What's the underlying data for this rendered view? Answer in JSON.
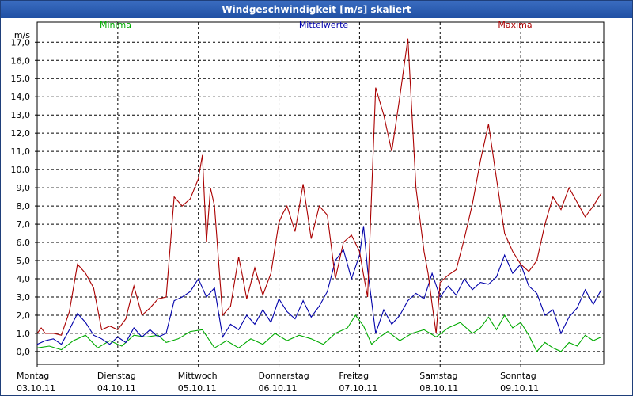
{
  "window": {
    "title": "Windgeschwindigkeit [m/s] skaliert"
  },
  "chart_data": {
    "type": "line",
    "title": "Windgeschwindigkeit [m/s] skaliert",
    "ylabel": "m/s",
    "ylim": [
      -0.7,
      18.1
    ],
    "yticks": [
      "0,0",
      "1,0",
      "2,0",
      "3,0",
      "4,0",
      "5,0",
      "6,0",
      "7,0",
      "8,0",
      "9,0",
      "10,0",
      "11,0",
      "12,0",
      "13,0",
      "14,0",
      "15,0",
      "16,0",
      "17,0"
    ],
    "xlim": [
      0,
      7.03
    ],
    "x_unit": "days",
    "days": [
      {
        "weekday": "Montag",
        "date": "03.10.11"
      },
      {
        "weekday": "Dienstag",
        "date": "04.10.11"
      },
      {
        "weekday": "Mittwoch",
        "date": "05.10.11"
      },
      {
        "weekday": "Donnerstag",
        "date": "06.10.11"
      },
      {
        "weekday": "Freitag",
        "date": "07.10.11"
      },
      {
        "weekday": "Samstag",
        "date": "08.10.11"
      },
      {
        "weekday": "Sonntag",
        "date": "09.10.11"
      }
    ],
    "grid": true,
    "legend_position": "top",
    "series": [
      {
        "name": "Minima",
        "color": "#00aa00",
        "points": [
          [
            0,
            0.2
          ],
          [
            0.15,
            0.3
          ],
          [
            0.3,
            0.1
          ],
          [
            0.45,
            0.6
          ],
          [
            0.6,
            0.9
          ],
          [
            0.75,
            0.2
          ],
          [
            0.9,
            0.6
          ],
          [
            1.05,
            0.3
          ],
          [
            1.2,
            0.9
          ],
          [
            1.35,
            0.8
          ],
          [
            1.5,
            0.9
          ],
          [
            1.6,
            0.5
          ],
          [
            1.75,
            0.7
          ],
          [
            1.9,
            1.1
          ],
          [
            2.05,
            1.2
          ],
          [
            2.2,
            0.2
          ],
          [
            2.35,
            0.6
          ],
          [
            2.5,
            0.2
          ],
          [
            2.65,
            0.7
          ],
          [
            2.8,
            0.4
          ],
          [
            2.95,
            1.0
          ],
          [
            3.1,
            0.6
          ],
          [
            3.25,
            0.9
          ],
          [
            3.4,
            0.7
          ],
          [
            3.55,
            0.4
          ],
          [
            3.7,
            1.0
          ],
          [
            3.85,
            1.3
          ],
          [
            3.95,
            2.0
          ],
          [
            4.05,
            1.4
          ],
          [
            4.15,
            0.4
          ],
          [
            4.25,
            0.8
          ],
          [
            4.35,
            1.1
          ],
          [
            4.5,
            0.6
          ],
          [
            4.65,
            1.0
          ],
          [
            4.8,
            1.2
          ],
          [
            4.95,
            0.8
          ],
          [
            5.1,
            1.3
          ],
          [
            5.25,
            1.6
          ],
          [
            5.4,
            1.0
          ],
          [
            5.5,
            1.3
          ],
          [
            5.6,
            1.9
          ],
          [
            5.7,
            1.2
          ],
          [
            5.8,
            2.0
          ],
          [
            5.9,
            1.3
          ],
          [
            6.0,
            1.6
          ],
          [
            6.1,
            0.9
          ],
          [
            6.2,
            0.0
          ],
          [
            6.3,
            0.5
          ],
          [
            6.4,
            0.2
          ],
          [
            6.5,
            0.0
          ],
          [
            6.6,
            0.5
          ],
          [
            6.7,
            0.3
          ],
          [
            6.8,
            0.9
          ],
          [
            6.9,
            0.6
          ],
          [
            7.0,
            0.8
          ]
        ]
      },
      {
        "name": "Mittelwerte",
        "color": "#0000aa",
        "points": [
          [
            0,
            0.4
          ],
          [
            0.1,
            0.6
          ],
          [
            0.2,
            0.7
          ],
          [
            0.3,
            0.4
          ],
          [
            0.4,
            1.2
          ],
          [
            0.5,
            2.1
          ],
          [
            0.6,
            1.6
          ],
          [
            0.7,
            0.9
          ],
          [
            0.8,
            0.7
          ],
          [
            0.9,
            0.4
          ],
          [
            1.0,
            0.8
          ],
          [
            1.1,
            0.5
          ],
          [
            1.2,
            1.3
          ],
          [
            1.3,
            0.8
          ],
          [
            1.4,
            1.2
          ],
          [
            1.5,
            0.8
          ],
          [
            1.6,
            1.0
          ],
          [
            1.7,
            2.8
          ],
          [
            1.8,
            3.0
          ],
          [
            1.9,
            3.3
          ],
          [
            2.0,
            4.0
          ],
          [
            2.1,
            3.0
          ],
          [
            2.2,
            3.5
          ],
          [
            2.3,
            0.8
          ],
          [
            2.4,
            1.5
          ],
          [
            2.5,
            1.2
          ],
          [
            2.6,
            2.0
          ],
          [
            2.7,
            1.5
          ],
          [
            2.8,
            2.3
          ],
          [
            2.9,
            1.6
          ],
          [
            3.0,
            2.9
          ],
          [
            3.1,
            2.2
          ],
          [
            3.2,
            1.8
          ],
          [
            3.3,
            2.8
          ],
          [
            3.4,
            1.9
          ],
          [
            3.5,
            2.5
          ],
          [
            3.6,
            3.3
          ],
          [
            3.7,
            5.0
          ],
          [
            3.8,
            5.6
          ],
          [
            3.9,
            4.0
          ],
          [
            4.0,
            5.3
          ],
          [
            4.05,
            6.9
          ],
          [
            4.1,
            4.5
          ],
          [
            4.2,
            1.0
          ],
          [
            4.3,
            2.3
          ],
          [
            4.4,
            1.5
          ],
          [
            4.5,
            2.0
          ],
          [
            4.6,
            2.8
          ],
          [
            4.7,
            3.2
          ],
          [
            4.8,
            2.9
          ],
          [
            4.9,
            4.3
          ],
          [
            5.0,
            3.0
          ],
          [
            5.1,
            3.6
          ],
          [
            5.2,
            3.1
          ],
          [
            5.3,
            4.0
          ],
          [
            5.4,
            3.4
          ],
          [
            5.5,
            3.8
          ],
          [
            5.6,
            3.7
          ],
          [
            5.7,
            4.1
          ],
          [
            5.8,
            5.3
          ],
          [
            5.9,
            4.3
          ],
          [
            6.0,
            4.8
          ],
          [
            6.1,
            3.6
          ],
          [
            6.2,
            3.2
          ],
          [
            6.3,
            2.0
          ],
          [
            6.4,
            2.3
          ],
          [
            6.5,
            1.0
          ],
          [
            6.6,
            1.9
          ],
          [
            6.7,
            2.4
          ],
          [
            6.8,
            3.4
          ],
          [
            6.9,
            2.6
          ],
          [
            7.0,
            3.4
          ]
        ]
      },
      {
        "name": "Maxima",
        "color": "#aa0000",
        "points": [
          [
            0,
            1.0
          ],
          [
            0.05,
            1.3
          ],
          [
            0.1,
            1.0
          ],
          [
            0.2,
            1.0
          ],
          [
            0.3,
            0.9
          ],
          [
            0.4,
            2.2
          ],
          [
            0.5,
            4.8
          ],
          [
            0.6,
            4.3
          ],
          [
            0.7,
            3.5
          ],
          [
            0.8,
            1.2
          ],
          [
            0.9,
            1.4
          ],
          [
            1.0,
            1.2
          ],
          [
            1.1,
            1.8
          ],
          [
            1.2,
            3.6
          ],
          [
            1.3,
            2.0
          ],
          [
            1.4,
            2.4
          ],
          [
            1.5,
            2.9
          ],
          [
            1.6,
            3.0
          ],
          [
            1.7,
            8.5
          ],
          [
            1.8,
            8.0
          ],
          [
            1.9,
            8.4
          ],
          [
            2.0,
            9.5
          ],
          [
            2.05,
            10.8
          ],
          [
            2.1,
            6.0
          ],
          [
            2.15,
            9.0
          ],
          [
            2.2,
            8.0
          ],
          [
            2.3,
            2.0
          ],
          [
            2.4,
            2.5
          ],
          [
            2.5,
            5.2
          ],
          [
            2.55,
            4.1
          ],
          [
            2.6,
            2.9
          ],
          [
            2.7,
            4.6
          ],
          [
            2.8,
            3.1
          ],
          [
            2.9,
            4.3
          ],
          [
            3.0,
            7.1
          ],
          [
            3.05,
            7.6
          ],
          [
            3.1,
            8.0
          ],
          [
            3.2,
            6.6
          ],
          [
            3.3,
            9.2
          ],
          [
            3.4,
            6.2
          ],
          [
            3.5,
            8.0
          ],
          [
            3.6,
            7.5
          ],
          [
            3.7,
            4.0
          ],
          [
            3.8,
            6.0
          ],
          [
            3.9,
            6.4
          ],
          [
            4.0,
            5.5
          ],
          [
            4.05,
            4.2
          ],
          [
            4.1,
            3.0
          ],
          [
            4.2,
            14.5
          ],
          [
            4.3,
            13.0
          ],
          [
            4.4,
            11.0
          ],
          [
            4.5,
            14.0
          ],
          [
            4.6,
            17.2
          ],
          [
            4.7,
            9.0
          ],
          [
            4.8,
            5.5
          ],
          [
            4.85,
            4.3
          ],
          [
            4.9,
            2.6
          ],
          [
            4.95,
            1.0
          ],
          [
            5.0,
            3.8
          ],
          [
            5.1,
            4.2
          ],
          [
            5.2,
            4.5
          ],
          [
            5.3,
            6.2
          ],
          [
            5.4,
            8.1
          ],
          [
            5.5,
            10.5
          ],
          [
            5.6,
            12.5
          ],
          [
            5.7,
            9.5
          ],
          [
            5.8,
            6.5
          ],
          [
            5.9,
            5.5
          ],
          [
            6.0,
            4.8
          ],
          [
            6.1,
            4.4
          ],
          [
            6.2,
            5.0
          ],
          [
            6.3,
            7.0
          ],
          [
            6.4,
            8.5
          ],
          [
            6.5,
            7.8
          ],
          [
            6.6,
            9.0
          ],
          [
            6.7,
            8.2
          ],
          [
            6.8,
            7.4
          ],
          [
            6.9,
            8.0
          ],
          [
            7.0,
            8.7
          ]
        ]
      }
    ]
  }
}
